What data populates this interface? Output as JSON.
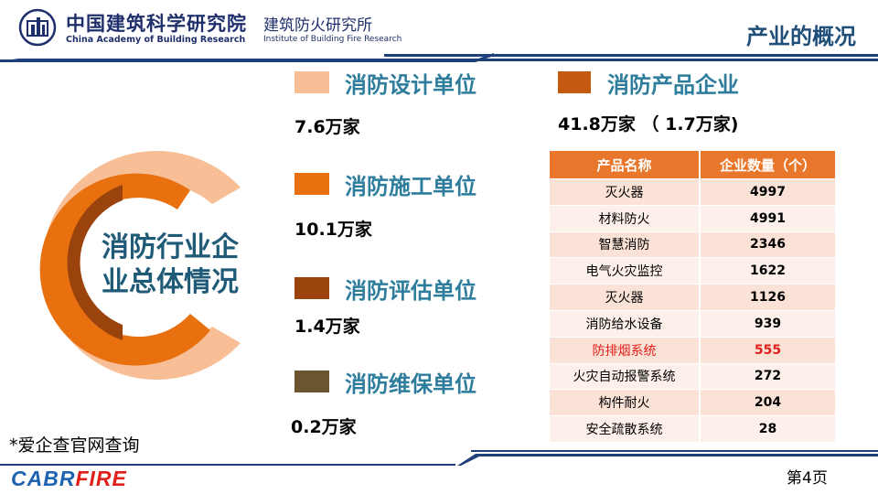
{
  "header": {
    "org_cn": "中国建筑科学研究院",
    "org_cn_sub": "建筑防火研究所",
    "org_en": "China Academy of Building Research",
    "org_en_sub": "Institute of Building Fire Research",
    "title": "产业的概况"
  },
  "ring": {
    "title_line1": "消防行业企",
    "title_line2": "业总体情况"
  },
  "categories": [
    {
      "label": "消防设计单位",
      "value": "7.6万家",
      "color": "#f8be95"
    },
    {
      "label": "消防施工单位",
      "value": "10.1万家",
      "color": "#e8700f"
    },
    {
      "label": "消防评估单位",
      "value": "1.4万家",
      "color": "#9a430c"
    },
    {
      "label": "消防维保单位",
      "value": "0.2万家",
      "color": "#6b5530"
    }
  ],
  "products": {
    "label": "消防产品企业",
    "color": "#c55a11",
    "value": "41.8万家 （ 1.7万家)"
  },
  "table": {
    "headers": [
      "产品名称",
      "企业数量（个）"
    ],
    "rows": [
      [
        "灭火器",
        "4997"
      ],
      [
        "材料防火",
        "4991"
      ],
      [
        "智慧消防",
        "2346"
      ],
      [
        "电气火灾监控",
        "1622"
      ],
      [
        "灭火器",
        "1126"
      ],
      [
        "消防给水设备",
        "939"
      ],
      [
        "防排烟系统",
        "555"
      ],
      [
        "火灾自动报警系统",
        "272"
      ],
      [
        "构件耐火",
        "204"
      ],
      [
        "安全疏散系统",
        "28"
      ]
    ],
    "highlight_color": "#e0201b"
  },
  "footer": {
    "note": "*爱企查官网查询",
    "brand_a": "CABR",
    "brand_b": "FIRE",
    "page": "第4页"
  }
}
